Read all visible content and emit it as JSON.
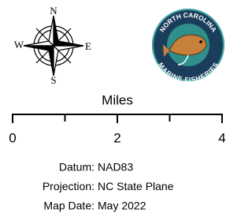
{
  "compass": {
    "north": "N",
    "east": "E",
    "south": "S",
    "west": "W"
  },
  "logo": {
    "top_text": "NORTH CAROLINA",
    "bottom_text": "MARINE FISHERIES"
  },
  "scale_bar": {
    "unit": "Miles",
    "ticks": [
      0,
      2,
      4
    ]
  },
  "metadata": [
    {
      "label": "Datum:",
      "value": "NAD83"
    },
    {
      "label": "Projection:",
      "value": "NC State Plane"
    },
    {
      "label": "Map Date:",
      "value": "May 2022"
    }
  ]
}
